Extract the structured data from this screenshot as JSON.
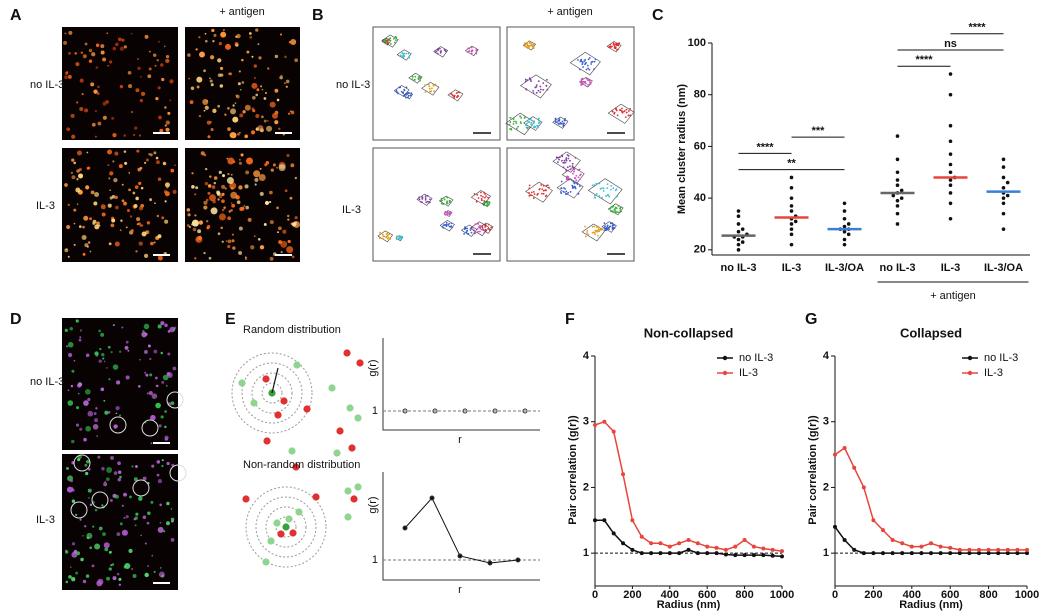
{
  "figure": {
    "letters": [
      "A",
      "B",
      "C",
      "D",
      "E",
      "F",
      "G"
    ],
    "a": {
      "column_header": "+ antigen",
      "rows": [
        "no IL-3",
        "IL-3"
      ]
    },
    "b": {
      "column_header": "+ antigen",
      "rows": [
        "no IL-3",
        "IL-3"
      ]
    },
    "d": {
      "rows": [
        "no IL-3",
        "IL-3"
      ]
    },
    "e": {
      "plots": [
        {
          "title": "Random distribution",
          "ylabel": "g(r)",
          "xlabel": "r",
          "tick": 1
        },
        {
          "title": "Non-random distribution",
          "ylabel": "g(r)",
          "xlabel": "r",
          "tick": 1
        }
      ]
    }
  },
  "chart_data": [
    {
      "type": "strip",
      "ylabel": "Mean cluster radius (nm)",
      "categories": [
        "no IL-3",
        "IL-3",
        "IL-3/OA",
        "no IL-3",
        "IL-3",
        "IL-3/OA"
      ],
      "values": [
        [
          20,
          22,
          23,
          24,
          25,
          25,
          26,
          27,
          28,
          30,
          33,
          35
        ],
        [
          22,
          26,
          28,
          30,
          31,
          32,
          33,
          35,
          37,
          40,
          44,
          48
        ],
        [
          22,
          24,
          26,
          27,
          28,
          28,
          29,
          30,
          32,
          35,
          38
        ],
        [
          30,
          34,
          37,
          39,
          40,
          41,
          42,
          43,
          45,
          47,
          50,
          55,
          64
        ],
        [
          32,
          38,
          42,
          45,
          47,
          48,
          50,
          53,
          57,
          62,
          68,
          80,
          88
        ],
        [
          28,
          34,
          38,
          40,
          41,
          42,
          44,
          46,
          48,
          52,
          55
        ]
      ],
      "means": [
        25.5,
        32.5,
        28,
        42,
        48,
        42.5
      ],
      "mean_colors": [
        "#666666",
        "#e8453c",
        "#3a7fd5",
        "#666666",
        "#e8453c",
        "#3a7fd5"
      ],
      "point_color": "#111111",
      "ylim": [
        18,
        100
      ],
      "yticks": [
        20,
        40,
        60,
        80,
        100
      ],
      "comparisons": [
        {
          "from": 0,
          "to": 2,
          "label": "**"
        },
        {
          "from": 0,
          "to": 1,
          "label": "****"
        },
        {
          "from": 1,
          "to": 2,
          "label": "***"
        },
        {
          "from": 3,
          "to": 4,
          "label": "****"
        },
        {
          "from": 3,
          "to": 5,
          "label": "ns"
        },
        {
          "from": 4,
          "to": 5,
          "label": "****"
        }
      ],
      "group": {
        "text": "+ antigen",
        "from": 3,
        "to": 5
      }
    },
    {
      "type": "line",
      "title": "Non-collapsed",
      "xlabel": "Radius (nm)",
      "ylabel": "Pair correlation (g(r))",
      "x": [
        0,
        50,
        100,
        150,
        200,
        250,
        300,
        350,
        400,
        450,
        500,
        550,
        600,
        650,
        700,
        750,
        800,
        850,
        900,
        950,
        1000
      ],
      "series": [
        {
          "name": "no IL-3",
          "color": "#111111",
          "values": [
            1.5,
            1.5,
            1.3,
            1.15,
            1.05,
            1.0,
            1.0,
            1.0,
            1.0,
            1.0,
            1.05,
            1.0,
            1.0,
            1.0,
            0.98,
            0.97,
            0.97,
            0.97,
            0.97,
            0.96,
            0.95
          ]
        },
        {
          "name": "IL-3",
          "color": "#e8453c",
          "values": [
            2.95,
            3.0,
            2.85,
            2.2,
            1.5,
            1.25,
            1.15,
            1.15,
            1.1,
            1.15,
            1.2,
            1.15,
            1.1,
            1.08,
            1.05,
            1.1,
            1.2,
            1.1,
            1.07,
            1.05,
            1.03
          ]
        }
      ],
      "xlim": [
        0,
        1000
      ],
      "xticks": [
        0,
        200,
        400,
        600,
        800,
        1000
      ],
      "ylim": [
        0.5,
        4
      ],
      "yticks": [
        1,
        2,
        3,
        4
      ],
      "reference_line": 1,
      "legend": "upper right"
    },
    {
      "type": "line",
      "title": "Collapsed",
      "xlabel": "Radius (nm)",
      "ylabel": "Pair correlation (g(r))",
      "x": [
        0,
        50,
        100,
        150,
        200,
        250,
        300,
        350,
        400,
        450,
        500,
        550,
        600,
        650,
        700,
        750,
        800,
        850,
        900,
        950,
        1000
      ],
      "series": [
        {
          "name": "no IL-3",
          "color": "#111111",
          "values": [
            1.4,
            1.2,
            1.05,
            1.0,
            1.0,
            1.0,
            1.0,
            1.0,
            1.0,
            1.0,
            1.0,
            1.0,
            1.0,
            1.0,
            1.0,
            1.0,
            1.0,
            1.0,
            1.0,
            1.0,
            1.0
          ]
        },
        {
          "name": "IL-3",
          "color": "#e8453c",
          "values": [
            2.5,
            2.6,
            2.3,
            2.0,
            1.5,
            1.35,
            1.2,
            1.15,
            1.1,
            1.1,
            1.15,
            1.1,
            1.08,
            1.05,
            1.05,
            1.05,
            1.05,
            1.05,
            1.05,
            1.05,
            1.05
          ]
        }
      ],
      "xlim": [
        0,
        1000
      ],
      "xticks": [
        0,
        200,
        400,
        600,
        800,
        1000
      ],
      "ylim": [
        0.5,
        4
      ],
      "yticks": [
        1,
        2,
        3,
        4
      ],
      "reference_line": 1,
      "legend": "upper right"
    }
  ]
}
